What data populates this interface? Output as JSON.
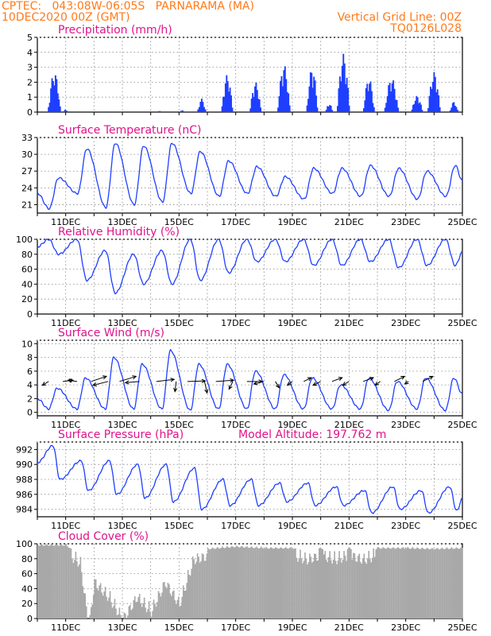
{
  "header": {
    "line1_left": "CPTEC:   043:08W-06:05S   PARNARAMA (MA)",
    "line2_left": "10DEC2020 00Z (GMT)",
    "line1_right": "Vertical Grid Line: 00Z",
    "line2_right": "TQ0126L028"
  },
  "colors": {
    "header": "#ff7a1a",
    "title": "#e0138c",
    "line": "#1f3fff",
    "bar": "#1f3fff",
    "cloud": "#a8a8a8"
  },
  "chart_data": [
    {
      "id": "precip",
      "type": "bar",
      "title": "Precipitation (mm/h)",
      "ylim": [
        0,
        5
      ],
      "yticks": [
        "0",
        "1",
        "2",
        "3",
        "4",
        "5"
      ],
      "x_range_days": [
        10,
        25
      ],
      "xtick_labels": [],
      "bursts": [
        {
          "center": 10.6,
          "width": 0.45,
          "peak": 2.7
        },
        {
          "center": 11.0,
          "width": 0.15,
          "peak": 0.2
        },
        {
          "center": 14.3,
          "width": 0.1,
          "peak": 0.1
        },
        {
          "center": 15.1,
          "width": 0.1,
          "peak": 0.2
        },
        {
          "center": 15.8,
          "width": 0.3,
          "peak": 0.9
        },
        {
          "center": 16.7,
          "width": 0.4,
          "peak": 2.5
        },
        {
          "center": 17.7,
          "width": 0.4,
          "peak": 2.0
        },
        {
          "center": 18.7,
          "width": 0.45,
          "peak": 3.2
        },
        {
          "center": 19.7,
          "width": 0.4,
          "peak": 3.0
        },
        {
          "center": 20.3,
          "width": 0.25,
          "peak": 0.6
        },
        {
          "center": 20.8,
          "width": 0.45,
          "peak": 3.9
        },
        {
          "center": 21.7,
          "width": 0.4,
          "peak": 2.3
        },
        {
          "center": 22.5,
          "width": 0.5,
          "peak": 2.3
        },
        {
          "center": 23.4,
          "width": 0.4,
          "peak": 1.1
        },
        {
          "center": 24.0,
          "width": 0.45,
          "peak": 2.7
        },
        {
          "center": 24.7,
          "width": 0.3,
          "peak": 0.7
        }
      ]
    },
    {
      "id": "temp",
      "type": "line",
      "title": "Surface Temperature (nC)",
      "ylim": [
        19.5,
        33
      ],
      "yticks": [
        "21",
        "24",
        "27",
        "30",
        "33"
      ],
      "ytick_values": [
        21,
        24,
        27,
        30,
        33
      ],
      "x_range_days": [
        10,
        25
      ],
      "xtick_labels": [
        "11DEC",
        "13DEC",
        "15DEC",
        "17DEC",
        "19DEC",
        "21DEC",
        "23DEC",
        "25DEC"
      ],
      "daily_max": [
        25.8,
        31.0,
        32.0,
        31.5,
        32.0,
        30.5,
        28.8,
        27.8,
        26.0,
        27.5,
        27.5,
        28.0,
        27.5,
        27.0,
        28.0,
        30.5
      ],
      "daily_min": [
        20.3,
        23.0,
        20.5,
        21.0,
        21.5,
        23.0,
        22.5,
        23.0,
        22.5,
        22.0,
        23.0,
        22.5,
        22.5,
        22.0,
        22.5
      ]
    },
    {
      "id": "rh",
      "type": "line",
      "title": "Relative Humidity (%)",
      "ylim": [
        0,
        100
      ],
      "yticks": [
        "0",
        "20",
        "40",
        "60",
        "80",
        "100"
      ],
      "ytick_values": [
        0,
        20,
        40,
        60,
        80,
        100
      ],
      "x_range_days": [
        10,
        25
      ],
      "xtick_labels": [
        "11DEC",
        "13DEC",
        "15DEC",
        "17DEC",
        "19DEC",
        "21DEC",
        "23DEC",
        "25DEC"
      ],
      "daily_max": [
        100,
        100,
        85,
        80,
        85,
        100,
        100,
        100,
        100,
        100,
        100,
        100,
        100,
        100,
        100,
        100
      ],
      "daily_min": [
        80,
        45,
        28,
        40,
        40,
        45,
        55,
        70,
        70,
        65,
        65,
        70,
        62,
        65,
        65
      ]
    },
    {
      "id": "wind",
      "type": "line",
      "title": "Surface Wind (m/s)",
      "ylim": [
        -0.5,
        10.5
      ],
      "yticks": [
        "0",
        "2",
        "4",
        "6",
        "8",
        "10"
      ],
      "ytick_values": [
        0,
        2,
        4,
        6,
        8,
        10
      ],
      "x_range_days": [
        10,
        25
      ],
      "xtick_labels": [
        "11DEC",
        "13DEC",
        "15DEC",
        "17DEC",
        "19DEC",
        "21DEC",
        "23DEC",
        "25DEC"
      ],
      "daily_max": [
        3.5,
        5.0,
        8.0,
        7.0,
        9.0,
        7.0,
        7.0,
        6.0,
        5.5,
        5.0,
        4.0,
        5.0,
        4.5,
        5.0,
        5.0,
        7.0
      ],
      "daily_min": [
        0.5,
        0.5,
        0.5,
        0.5,
        0.5,
        0.3,
        0.5,
        0.5,
        0.5,
        0.5,
        0.5,
        0.5,
        0.3,
        0.5,
        0.3
      ],
      "vectors": [
        {
          "day": 10.4,
          "u": -2.5,
          "v": -1.5
        },
        {
          "day": 10.9,
          "u": 4.0,
          "v": 0.5
        },
        {
          "day": 11.4,
          "u": -3.5,
          "v": 0.5
        },
        {
          "day": 11.9,
          "u": 6.0,
          "v": 2.0
        },
        {
          "day": 12.5,
          "u": -6.0,
          "v": -1.5
        },
        {
          "day": 12.9,
          "u": 6.5,
          "v": 2.0
        },
        {
          "day": 13.6,
          "u": -5.5,
          "v": -0.5
        },
        {
          "day": 14.2,
          "u": 7.0,
          "v": 0.8
        },
        {
          "day": 14.9,
          "u": -0.5,
          "v": -4.0
        },
        {
          "day": 15.3,
          "u": 7.0,
          "v": 0.2
        },
        {
          "day": 15.9,
          "u": 1.0,
          "v": -4.5
        },
        {
          "day": 16.3,
          "u": 7.0,
          "v": 0.5
        },
        {
          "day": 16.9,
          "u": -1.5,
          "v": -3.0
        },
        {
          "day": 17.4,
          "u": 6.0,
          "v": 0.0
        },
        {
          "day": 18.0,
          "u": -4.0,
          "v": -1.0
        },
        {
          "day": 18.4,
          "u": 1.5,
          "v": -2.5
        },
        {
          "day": 19.0,
          "u": -2.0,
          "v": -1.5
        },
        {
          "day": 19.4,
          "u": 3.0,
          "v": 1.5
        },
        {
          "day": 20.0,
          "u": -3.0,
          "v": -1.5
        },
        {
          "day": 20.4,
          "u": 4.0,
          "v": 1.5
        },
        {
          "day": 21.0,
          "u": -2.5,
          "v": -1.5
        },
        {
          "day": 21.5,
          "u": 4.0,
          "v": 1.5
        },
        {
          "day": 22.1,
          "u": -2.0,
          "v": -1.5
        },
        {
          "day": 22.6,
          "u": 4.0,
          "v": 2.0
        },
        {
          "day": 23.1,
          "u": -1.5,
          "v": -1.0
        },
        {
          "day": 23.6,
          "u": 4.0,
          "v": 2.0
        }
      ]
    },
    {
      "id": "pres",
      "type": "line",
      "title": "Surface Pressure (hPa)",
      "annotation": "Model Altitude:  197.762  m",
      "ylim": [
        983,
        993
      ],
      "yticks": [
        "984",
        "986",
        "988",
        "990",
        "992"
      ],
      "ytick_values": [
        984,
        986,
        988,
        990,
        992
      ],
      "x_range_days": [
        10,
        25
      ],
      "xtick_labels": [
        "11DEC",
        "13DEC",
        "15DEC",
        "17DEC",
        "19DEC",
        "21DEC",
        "23DEC",
        "25DEC"
      ],
      "daily_max": [
        992.5,
        990.5,
        990.5,
        990.0,
        990.0,
        989.5,
        988.0,
        988.0,
        987.5,
        987.5,
        987.0,
        986.5,
        987.0,
        986.5,
        987.0,
        988.5
      ],
      "daily_min": [
        988.0,
        986.5,
        986.0,
        985.5,
        985.0,
        984.0,
        984.5,
        984.5,
        985.0,
        984.5,
        984.5,
        983.5,
        984.0,
        983.5,
        983.8
      ]
    },
    {
      "id": "cloud",
      "type": "area",
      "title": "Cloud Cover (%)",
      "ylim": [
        0,
        100
      ],
      "yticks": [
        "0",
        "20",
        "40",
        "60",
        "80",
        "100"
      ],
      "ytick_values": [
        0,
        20,
        40,
        60,
        80,
        100
      ],
      "x_range_days": [
        10,
        25
      ],
      "xtick_labels": [
        "11DEC",
        "13DEC",
        "15DEC",
        "17DEC",
        "19DEC",
        "21DEC",
        "23DEC",
        "25DEC"
      ],
      "days": [
        10,
        10.5,
        11,
        11.5,
        11.8,
        12,
        12.5,
        13,
        13.5,
        14,
        14.5,
        15,
        15.5,
        16,
        17,
        18,
        19,
        19.5,
        20,
        20.5,
        21,
        21.5,
        22,
        23,
        24,
        25
      ],
      "values": [
        100,
        100,
        100,
        85,
        0,
        60,
        40,
        10,
        40,
        20,
        60,
        30,
        90,
        95,
        98,
        96,
        96,
        90,
        96,
        90,
        96,
        90,
        96,
        96,
        95,
        96
      ]
    }
  ]
}
